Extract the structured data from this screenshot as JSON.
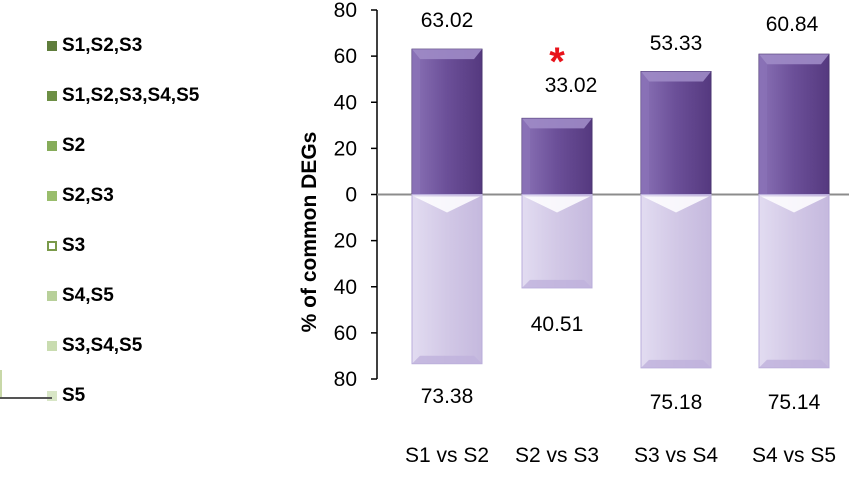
{
  "legend": {
    "items": [
      {
        "label": "S1,S2,S3",
        "color": "#5f7d3c",
        "hollow": false
      },
      {
        "label": "S1,S2,S3,S4,S5",
        "color": "#6d8f45",
        "hollow": false
      },
      {
        "label": "S2",
        "color": "#86ac5a",
        "hollow": false
      },
      {
        "label": "S2,S3",
        "color": "#99bd6c",
        "hollow": false
      },
      {
        "label": "S3",
        "color": "#7a9a4a",
        "hollow": true
      },
      {
        "label": "S4,S5",
        "color": "#b8d09a",
        "hollow": false
      },
      {
        "label": "S3,S4,S5",
        "color": "#c9dcb0",
        "hollow": false
      },
      {
        "label": "S5",
        "color": "#d8e6c6",
        "hollow": false
      }
    ]
  },
  "chart_data": {
    "type": "bar",
    "ylabel": "% of common DEGs",
    "categories": [
      "S1 vs S2",
      "S2 vs S3",
      "S3 vs S4",
      "S4 vs S5"
    ],
    "series": [
      {
        "values": [
          63.02,
          33.02,
          53.33,
          60.84
        ],
        "color": "#6b4f98"
      },
      {
        "values": [
          -73.38,
          -40.51,
          -75.18,
          -75.14
        ],
        "color": "#d7cfea"
      }
    ],
    "value_labels_top": [
      "63.02",
      "33.02",
      "53.33",
      "60.84"
    ],
    "value_labels_bottom": [
      "73.38",
      "40.51",
      "75.18",
      "75.14"
    ],
    "ylim": [
      -80,
      80
    ],
    "yticks": [
      80,
      60,
      40,
      20,
      0,
      -20,
      -40,
      -60,
      -80
    ],
    "ytick_labels": [
      "80",
      "60",
      "40",
      "20",
      "0",
      "20",
      "40",
      "60",
      "80"
    ],
    "annotation": {
      "text": "*",
      "category": "S2 vs S3",
      "color": "#e8131b"
    },
    "grid": false
  }
}
